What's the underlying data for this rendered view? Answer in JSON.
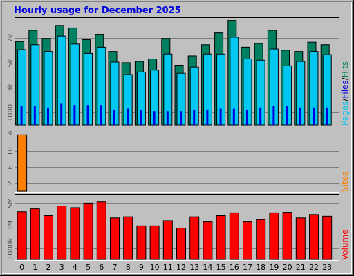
{
  "title": "Hourly usage for December 2025",
  "colors": {
    "pages": "#00c8f0",
    "files": "#0000e0",
    "hits": "#008060",
    "sites": "#ff8000",
    "volume": "#ff0000",
    "panel_bg": "#c0c0c0"
  },
  "chart_data": [
    {
      "type": "bar",
      "name": "hits-files-pages",
      "categories": [
        "0",
        "1",
        "2",
        "3",
        "4",
        "5",
        "6",
        "7",
        "8",
        "9",
        "10",
        "11",
        "12",
        "13",
        "14",
        "15",
        "16",
        "17",
        "18",
        "19",
        "20",
        "21",
        "22",
        "23"
      ],
      "yticks": [
        "1000",
        "3k",
        "5k",
        "7k"
      ],
      "ytick_values": [
        1000,
        3000,
        5000,
        7000
      ],
      "ylim": [
        0,
        8600
      ],
      "series": [
        {
          "name": "Hits",
          "values": [
            6700,
            7600,
            6950,
            8000,
            7800,
            6850,
            7250,
            5900,
            5000,
            5100,
            5300,
            6950,
            4800,
            5550,
            6450,
            7400,
            8400,
            6250,
            6550,
            7600,
            6000,
            5900,
            6650,
            6450
          ]
        },
        {
          "name": "Files",
          "values": [
            1500,
            1500,
            1400,
            1700,
            1600,
            1600,
            1600,
            1200,
            1300,
            1200,
            1100,
            1100,
            1100,
            1200,
            1200,
            1300,
            1300,
            1200,
            1400,
            1500,
            1500,
            1400,
            1400,
            1400
          ]
        },
        {
          "name": "Pages",
          "values": [
            6050,
            6450,
            5900,
            7150,
            6500,
            5750,
            6250,
            5050,
            4050,
            4250,
            4400,
            5700,
            4150,
            4650,
            5700,
            5700,
            7050,
            5300,
            5200,
            6100,
            4750,
            5100,
            5900,
            5650
          ]
        }
      ],
      "legend": [
        "Pages",
        "/",
        "Files",
        "/",
        "Hits"
      ]
    },
    {
      "type": "bar",
      "name": "sites",
      "categories": [
        "0",
        "1",
        "2",
        "3",
        "4",
        "5",
        "6",
        "7",
        "8",
        "9",
        "10",
        "11",
        "12",
        "13",
        "14",
        "15",
        "16",
        "17",
        "18",
        "19",
        "20",
        "21",
        "22",
        "23"
      ],
      "yticks": [
        "2",
        "6",
        "10",
        "14"
      ],
      "ytick_values": [
        2,
        6,
        10,
        14
      ],
      "ylim": [
        0,
        15.6
      ],
      "series": [
        {
          "name": "Sites",
          "values": [
            14,
            0,
            0,
            0,
            0,
            0,
            0,
            0,
            0,
            0,
            0,
            0,
            0,
            0,
            0,
            0,
            0,
            0,
            0,
            0,
            0,
            0,
            0,
            0
          ]
        }
      ],
      "legend": [
        "Sites"
      ]
    },
    {
      "type": "bar",
      "name": "volume",
      "categories": [
        "0",
        "1",
        "2",
        "3",
        "4",
        "5",
        "6",
        "7",
        "8",
        "9",
        "10",
        "11",
        "12",
        "13",
        "14",
        "15",
        "16",
        "17",
        "18",
        "19",
        "20",
        "21",
        "22",
        "23"
      ],
      "yticks": [
        "1000k",
        "3M",
        "5M"
      ],
      "ytick_values": [
        1000,
        3000,
        5000
      ],
      "ylim": [
        0,
        5700
      ],
      "series": [
        {
          "name": "Volume",
          "values": [
            4200,
            4450,
            3850,
            4700,
            4550,
            4950,
            5050,
            3650,
            3750,
            2950,
            2950,
            3400,
            2750,
            3750,
            3300,
            3850,
            4100,
            3300,
            3500,
            4100,
            4150,
            3650,
            3950,
            3800
          ]
        }
      ],
      "legend": [
        "Volume"
      ]
    }
  ]
}
